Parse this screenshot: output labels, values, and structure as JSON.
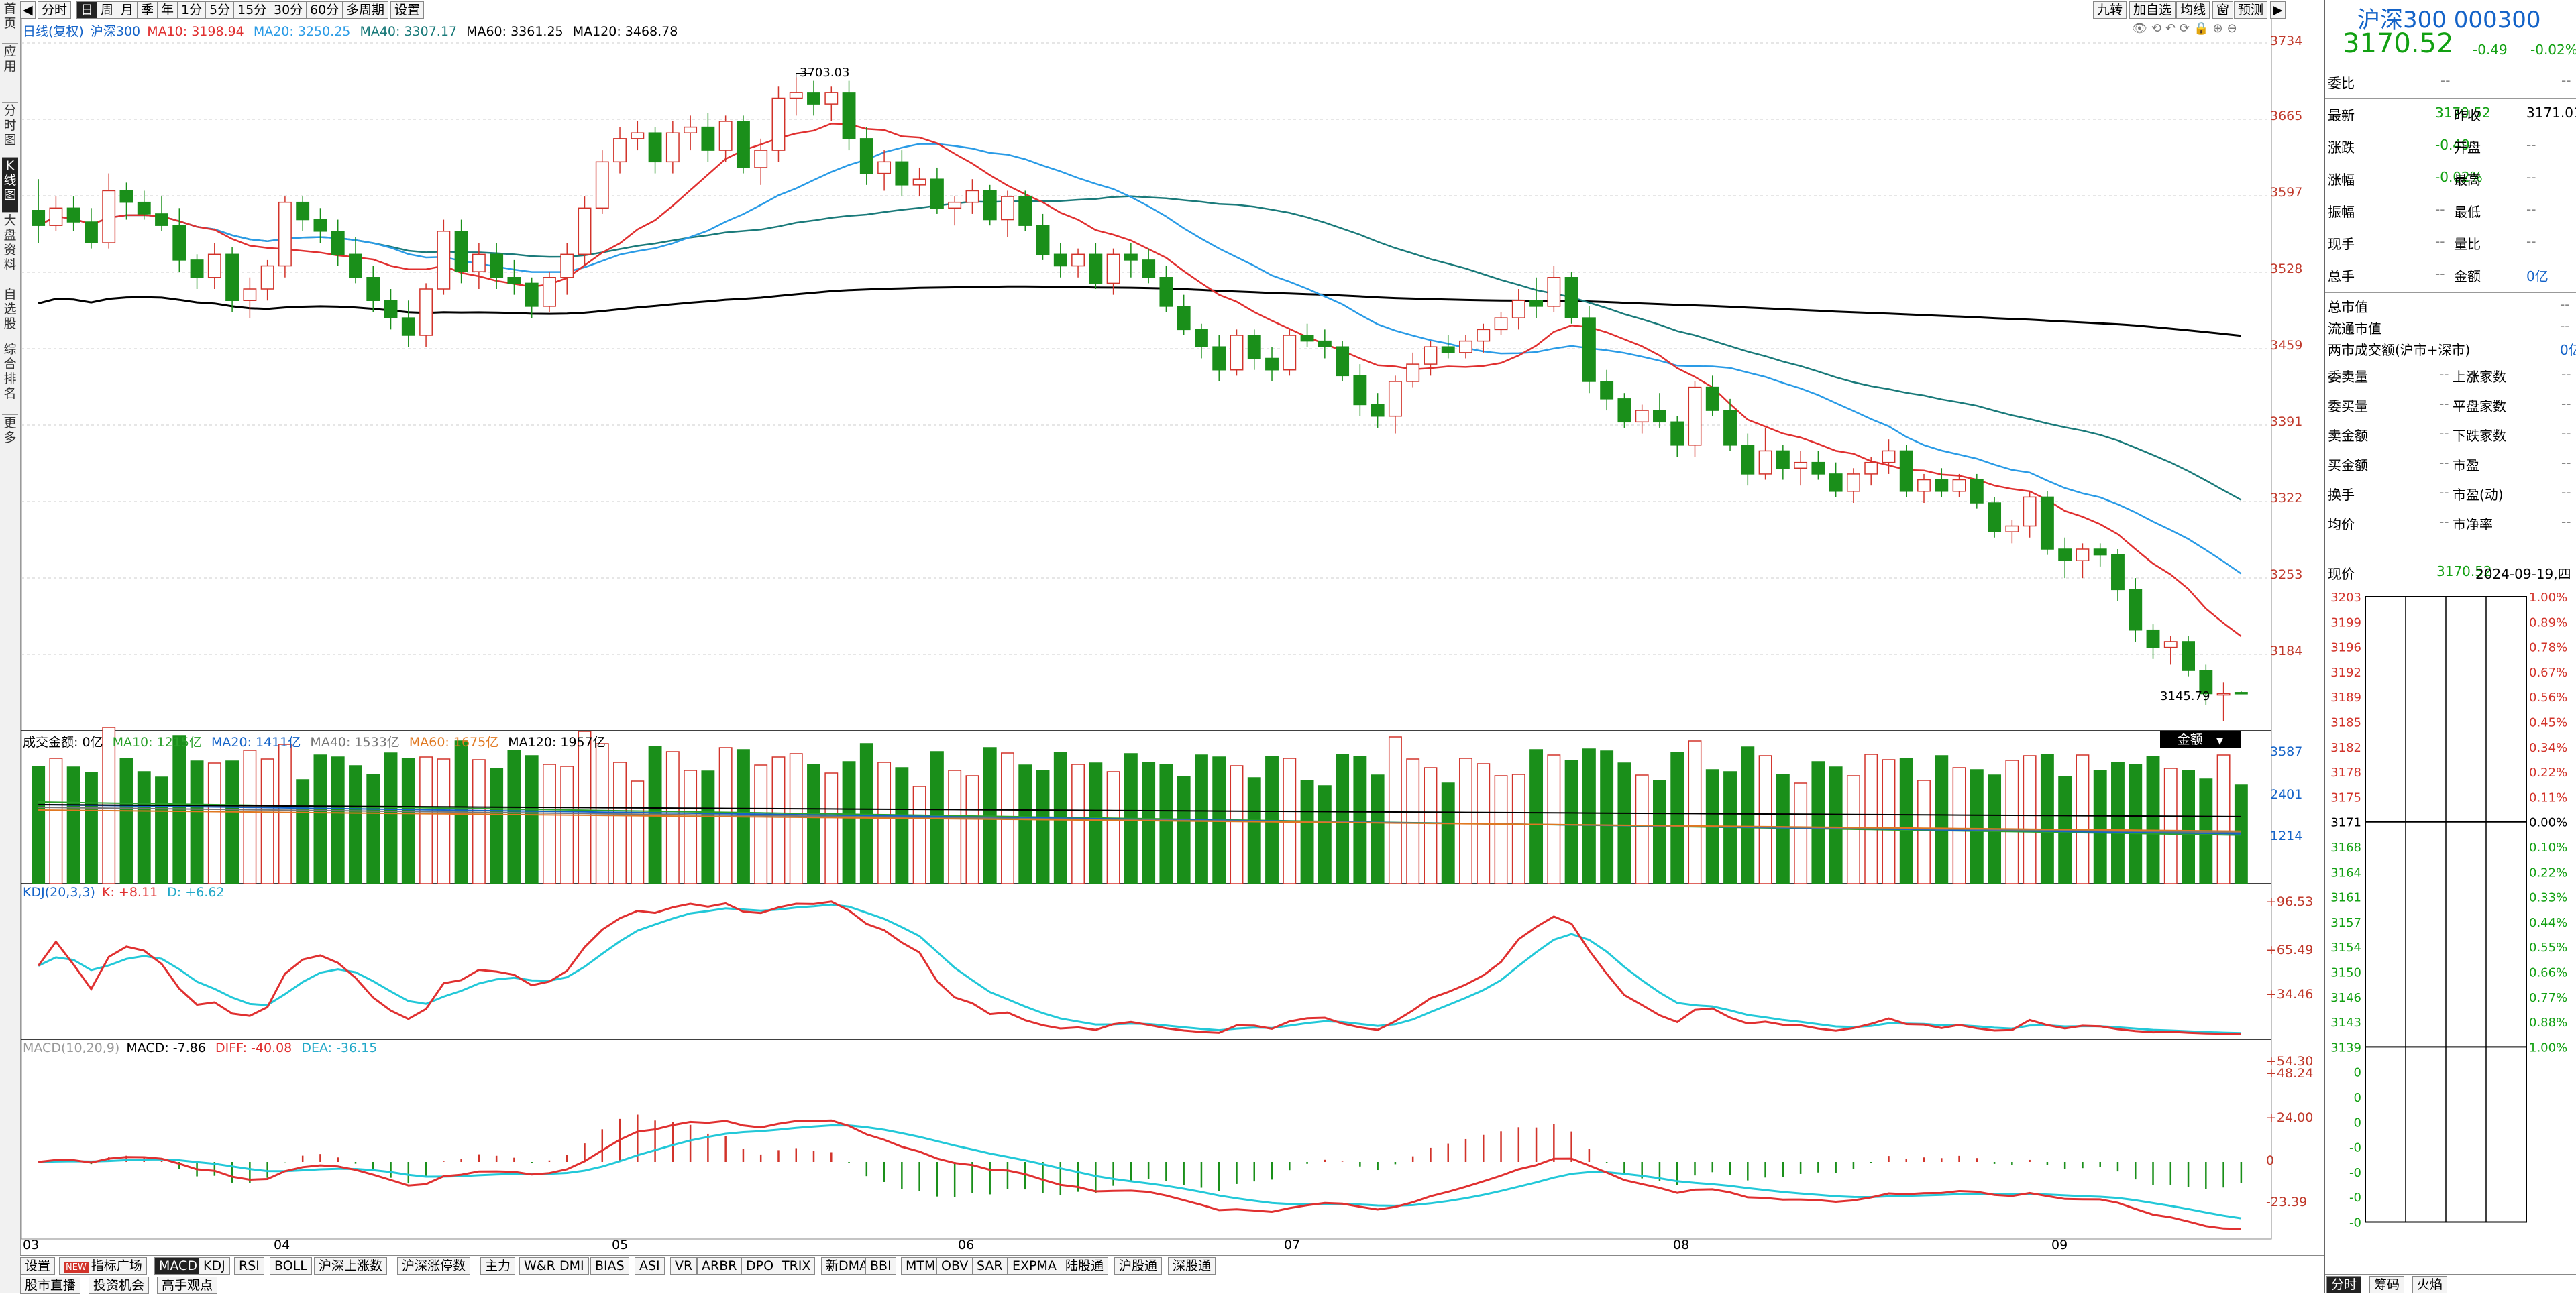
{
  "left_nav": [
    "首页",
    "应用",
    "分时图",
    "K线图",
    "大盘资料",
    "自选股",
    "综合排名",
    "更多"
  ],
  "left_nav_active": 3,
  "toolbar": {
    "buttons": [
      "分时",
      "日",
      "周",
      "月",
      "季",
      "年",
      "1分",
      "5分",
      "15分",
      "30分",
      "60分",
      "多周期",
      "设置"
    ],
    "selected": 1,
    "right_buttons": [
      "九转",
      "加自选",
      "均线",
      "窗",
      "预测"
    ]
  },
  "main_legend": {
    "label": "日线(复权)",
    "name": "沪深300",
    "ma10": "MA10: 3198.94",
    "ma20": "MA20: 3250.25",
    "ma40": "MA40: 3307.17",
    "ma60": "MA60: 3361.25",
    "ma120": "MA120: 3468.78"
  },
  "price_axis": [
    "3734",
    "3665",
    "3597",
    "3528",
    "3459",
    "3391",
    "3322",
    "3253",
    "3184"
  ],
  "annotations": {
    "high": "3703.03",
    "low": "3145.79"
  },
  "vol_legend": {
    "label": "成交金额: 0亿",
    "ma10": "MA10: 1215亿",
    "ma20": "MA20: 1411亿",
    "ma40": "MA40: 1533亿",
    "ma60": "MA60: 1675亿",
    "ma120": "MA120: 1957亿",
    "dropdown": "金额"
  },
  "vol_axis": [
    "3587",
    "2401",
    "1214"
  ],
  "kdj_legend": {
    "label": "KDJ(20,3,3)",
    "k": "K: +8.11",
    "d": "D: +6.62"
  },
  "kdj_axis": [
    "+96.53",
    "+65.49",
    "+34.46"
  ],
  "macd_legend": {
    "label": "MACD(10,20,9)",
    "macd": "MACD: -7.86",
    "diff": "DIFF: -40.08",
    "dea": "DEA: -36.15"
  },
  "macd_axis": [
    "+54.30",
    "+48.24",
    "+24.00",
    "0",
    "-23.39"
  ],
  "x_axis": [
    "03",
    "04",
    "05",
    "06",
    "07",
    "08",
    "09"
  ],
  "bottom_tabs": [
    "设置",
    "指标广场",
    "MACD",
    "KDJ",
    "RSI",
    "BOLL",
    "沪深上涨数",
    "沪深涨停数",
    "主力",
    "W&R",
    "DMI",
    "BIAS",
    "ASI",
    "VR",
    "ARBR",
    "DPO",
    "TRIX",
    "新DMA",
    "BBI",
    "MTM",
    "OBV",
    "SAR",
    "EXPMA",
    "陆股通",
    "沪股通",
    "深股通"
  ],
  "bottom_tabs_selected": 2,
  "new_badge": "NEW",
  "bottom_tabs2": [
    "股市直播",
    "投资机会",
    "高手观点"
  ],
  "right_panel": {
    "title": "沪深300 000300",
    "price": "3170.52",
    "change": "-0.49",
    "change_pct": "-0.02%",
    "weibi_label": "委比",
    "weibi_value": "--",
    "weibi_value2": "--",
    "rows": [
      [
        "最新",
        "3170.52",
        "昨收",
        "3171.01"
      ],
      [
        "涨跌",
        "-0.49",
        "开盘",
        "--"
      ],
      [
        "涨幅",
        "-0.02%",
        "最高",
        "--"
      ],
      [
        "振幅",
        "--",
        "最低",
        "--"
      ],
      [
        "现手",
        "--",
        "量比",
        "--"
      ],
      [
        "总手",
        "--",
        "金额",
        "0亿"
      ]
    ],
    "rows2": [
      [
        "总市值",
        "--"
      ],
      [
        "流通市值",
        "--"
      ],
      [
        "两市成交额(沪市+深市)",
        "0亿"
      ]
    ],
    "rows3": [
      [
        "委卖量",
        "--",
        "上涨家数",
        "--"
      ],
      [
        "委买量",
        "--",
        "平盘家数",
        "--"
      ],
      [
        "卖金额",
        "--",
        "下跌家数",
        "--"
      ],
      [
        "买金额",
        "--",
        "市盈",
        "--"
      ],
      [
        "换手",
        "--",
        "市盈(动)",
        "--"
      ],
      [
        "均价",
        "--",
        "市净率",
        "--"
      ]
    ],
    "now_label": "现价",
    "now_price": "3170.52",
    "now_date": "2024-09-19,四",
    "mini_left": [
      "3203",
      "3199",
      "3196",
      "3192",
      "3189",
      "3185",
      "3182",
      "3178",
      "3175",
      "3171",
      "3168",
      "3164",
      "3161",
      "3157",
      "3154",
      "3150",
      "3146",
      "3143",
      "3139",
      "0",
      "0",
      "0",
      "-0",
      "-0",
      "-0",
      "-0"
    ],
    "mini_right": [
      "1.00%",
      "0.89%",
      "0.78%",
      "0.67%",
      "0.56%",
      "0.45%",
      "0.34%",
      "0.22%",
      "0.11%",
      "0.00%",
      "0.10%",
      "0.22%",
      "0.33%",
      "0.44%",
      "0.55%",
      "0.66%",
      "0.77%",
      "0.88%",
      "1.00%"
    ],
    "tabs": [
      "分时",
      "筹码",
      "火焰"
    ]
  },
  "chart_data": {
    "type": "candlestick",
    "title": "沪深300",
    "period": "日线(复权)",
    "x_labels": [
      "03",
      "04",
      "05",
      "06",
      "07",
      "08",
      "09"
    ],
    "price_range": [
      3139,
      3734
    ],
    "high_label": 3703.03,
    "low_label": 3145.79,
    "ohlc_series": "candles (o,h,l,c)",
    "candles": [
      [
        3588,
        3615,
        3560,
        3575
      ],
      [
        3575,
        3600,
        3570,
        3590
      ],
      [
        3590,
        3600,
        3570,
        3578
      ],
      [
        3578,
        3590,
        3555,
        3560
      ],
      [
        3560,
        3620,
        3555,
        3605
      ],
      [
        3605,
        3612,
        3580,
        3595
      ],
      [
        3595,
        3605,
        3580,
        3585
      ],
      [
        3585,
        3600,
        3570,
        3575
      ],
      [
        3575,
        3590,
        3535,
        3545
      ],
      [
        3545,
        3550,
        3520,
        3530
      ],
      [
        3530,
        3560,
        3520,
        3550
      ],
      [
        3550,
        3556,
        3500,
        3510
      ],
      [
        3510,
        3530,
        3495,
        3520
      ],
      [
        3520,
        3545,
        3510,
        3540
      ],
      [
        3540,
        3600,
        3530,
        3595
      ],
      [
        3595,
        3600,
        3570,
        3580
      ],
      [
        3580,
        3590,
        3560,
        3570
      ],
      [
        3570,
        3580,
        3540,
        3550
      ],
      [
        3550,
        3565,
        3525,
        3530
      ],
      [
        3530,
        3540,
        3500,
        3510
      ],
      [
        3510,
        3520,
        3485,
        3495
      ],
      [
        3495,
        3510,
        3470,
        3480
      ],
      [
        3480,
        3525,
        3470,
        3520
      ],
      [
        3520,
        3580,
        3515,
        3570
      ],
      [
        3570,
        3580,
        3525,
        3535
      ],
      [
        3535,
        3560,
        3520,
        3550
      ],
      [
        3550,
        3560,
        3520,
        3530
      ],
      [
        3530,
        3545,
        3515,
        3525
      ],
      [
        3525,
        3530,
        3495,
        3505
      ],
      [
        3505,
        3535,
        3500,
        3530
      ],
      [
        3530,
        3560,
        3515,
        3550
      ],
      [
        3550,
        3600,
        3540,
        3590
      ],
      [
        3590,
        3640,
        3585,
        3630
      ],
      [
        3630,
        3660,
        3620,
        3650
      ],
      [
        3650,
        3665,
        3640,
        3655
      ],
      [
        3655,
        3660,
        3620,
        3630
      ],
      [
        3630,
        3665,
        3620,
        3655
      ],
      [
        3655,
        3670,
        3640,
        3660
      ],
      [
        3660,
        3672,
        3630,
        3640
      ],
      [
        3640,
        3670,
        3630,
        3665
      ],
      [
        3665,
        3670,
        3620,
        3625
      ],
      [
        3625,
        3650,
        3610,
        3640
      ],
      [
        3640,
        3695,
        3630,
        3685
      ],
      [
        3685,
        3703,
        3670,
        3690
      ],
      [
        3690,
        3700,
        3670,
        3680
      ],
      [
        3680,
        3695,
        3665,
        3690
      ],
      [
        3690,
        3700,
        3640,
        3650
      ],
      [
        3650,
        3660,
        3610,
        3620
      ],
      [
        3620,
        3640,
        3605,
        3630
      ],
      [
        3630,
        3640,
        3600,
        3610
      ],
      [
        3610,
        3625,
        3600,
        3615
      ],
      [
        3615,
        3625,
        3585,
        3590
      ],
      [
        3590,
        3600,
        3575,
        3595
      ],
      [
        3595,
        3615,
        3585,
        3605
      ],
      [
        3605,
        3610,
        3575,
        3580
      ],
      [
        3580,
        3605,
        3565,
        3600
      ],
      [
        3600,
        3605,
        3570,
        3575
      ],
      [
        3575,
        3585,
        3545,
        3550
      ],
      [
        3550,
        3560,
        3530,
        3540
      ],
      [
        3540,
        3555,
        3530,
        3550
      ],
      [
        3550,
        3560,
        3520,
        3525
      ],
      [
        3525,
        3555,
        3515,
        3550
      ],
      [
        3550,
        3560,
        3530,
        3545
      ],
      [
        3545,
        3555,
        3525,
        3530
      ],
      [
        3530,
        3540,
        3500,
        3505
      ],
      [
        3505,
        3515,
        3480,
        3485
      ],
      [
        3485,
        3490,
        3460,
        3470
      ],
      [
        3470,
        3480,
        3440,
        3450
      ],
      [
        3450,
        3485,
        3445,
        3480
      ],
      [
        3480,
        3485,
        3450,
        3460
      ],
      [
        3460,
        3470,
        3440,
        3450
      ],
      [
        3450,
        3485,
        3445,
        3480
      ],
      [
        3480,
        3490,
        3470,
        3475
      ],
      [
        3475,
        3485,
        3460,
        3470
      ],
      [
        3470,
        3475,
        3440,
        3445
      ],
      [
        3445,
        3455,
        3410,
        3420
      ],
      [
        3420,
        3430,
        3400,
        3410
      ],
      [
        3410,
        3445,
        3395,
        3440
      ],
      [
        3440,
        3465,
        3435,
        3455
      ],
      [
        3455,
        3475,
        3445,
        3470
      ],
      [
        3470,
        3480,
        3460,
        3465
      ],
      [
        3465,
        3480,
        3460,
        3475
      ],
      [
        3475,
        3490,
        3465,
        3485
      ],
      [
        3485,
        3500,
        3480,
        3495
      ],
      [
        3495,
        3520,
        3485,
        3510
      ],
      [
        3510,
        3530,
        3495,
        3505
      ],
      [
        3505,
        3540,
        3500,
        3530
      ],
      [
        3530,
        3535,
        3490,
        3495
      ],
      [
        3495,
        3505,
        3430,
        3440
      ],
      [
        3440,
        3450,
        3415,
        3425
      ],
      [
        3425,
        3430,
        3400,
        3405
      ],
      [
        3405,
        3420,
        3395,
        3415
      ],
      [
        3415,
        3430,
        3400,
        3405
      ],
      [
        3405,
        3410,
        3375,
        3385
      ],
      [
        3385,
        3440,
        3375,
        3435
      ],
      [
        3435,
        3445,
        3410,
        3415
      ],
      [
        3415,
        3425,
        3380,
        3385
      ],
      [
        3385,
        3395,
        3350,
        3360
      ],
      [
        3360,
        3400,
        3355,
        3380
      ],
      [
        3380,
        3385,
        3355,
        3365
      ],
      [
        3365,
        3380,
        3350,
        3370
      ],
      [
        3370,
        3380,
        3355,
        3360
      ],
      [
        3360,
        3370,
        3340,
        3345
      ],
      [
        3345,
        3365,
        3335,
        3360
      ],
      [
        3360,
        3375,
        3350,
        3370
      ],
      [
        3370,
        3390,
        3360,
        3380
      ],
      [
        3380,
        3385,
        3340,
        3345
      ],
      [
        3345,
        3360,
        3335,
        3355
      ],
      [
        3355,
        3365,
        3340,
        3345
      ],
      [
        3345,
        3360,
        3340,
        3355
      ],
      [
        3355,
        3360,
        3330,
        3335
      ],
      [
        3335,
        3340,
        3305,
        3310
      ],
      [
        3310,
        3320,
        3300,
        3315
      ],
      [
        3315,
        3345,
        3305,
        3340
      ],
      [
        3340,
        3345,
        3290,
        3295
      ],
      [
        3295,
        3305,
        3270,
        3285
      ],
      [
        3285,
        3300,
        3270,
        3295
      ],
      [
        3295,
        3300,
        3280,
        3290
      ],
      [
        3290,
        3295,
        3250,
        3260
      ],
      [
        3260,
        3270,
        3215,
        3225
      ],
      [
        3225,
        3230,
        3200,
        3210
      ],
      [
        3210,
        3220,
        3195,
        3215
      ],
      [
        3215,
        3220,
        3185,
        3190
      ],
      [
        3190,
        3195,
        3160,
        3170
      ],
      [
        3170,
        3180,
        3146,
        3170
      ],
      [
        3171,
        3172,
        3170,
        3170.52
      ]
    ],
    "ma": {
      "MA10": 3198.94,
      "MA20": 3250.25,
      "MA40": 3307.17,
      "MA60": 3361.25,
      "MA120": 3468.78
    },
    "volume_range": [
      0,
      3587
    ],
    "kdj": {
      "K": 8.11,
      "D": 6.62
    },
    "macd": {
      "MACD": -7.86,
      "DIFF": -40.08,
      "DEA": -36.15
    }
  },
  "colors": {
    "up": "#d2332a",
    "down": "#1a8f1a",
    "ma10": "#e03030",
    "ma20": "#2a9be6",
    "ma40": "#1a7a7a",
    "ma60": "#000000",
    "kdj_k": "#e03030",
    "kdj_d": "#22c8d8",
    "accent": "#1463c8"
  }
}
